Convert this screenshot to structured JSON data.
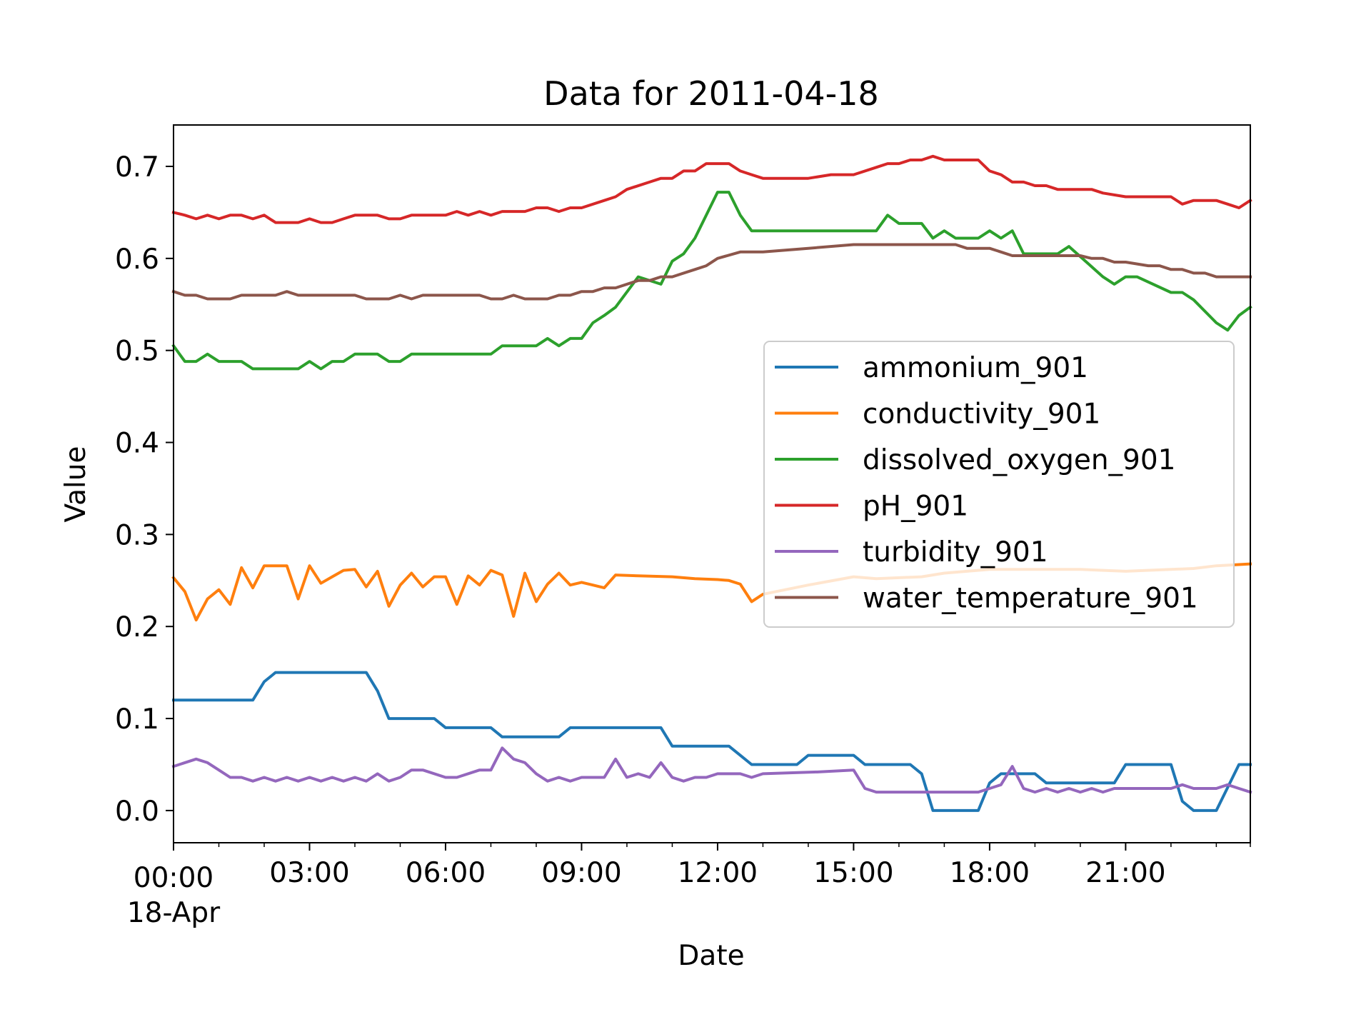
{
  "chart_data": {
    "type": "line",
    "title": "Data for 2011-04-18",
    "xlabel": "Date",
    "ylabel": "Value",
    "xlim": [
      0,
      23.75
    ],
    "ylim": [
      -0.035,
      0.745
    ],
    "x_unit": "hours since 2011-04-18 00:00",
    "x_ticks": [
      {
        "value": 0,
        "label": "00:00",
        "sublabel": "18-Apr"
      },
      {
        "value": 3,
        "label": "03:00"
      },
      {
        "value": 6,
        "label": "06:00"
      },
      {
        "value": 9,
        "label": "09:00"
      },
      {
        "value": 12,
        "label": "12:00"
      },
      {
        "value": 15,
        "label": "15:00"
      },
      {
        "value": 18,
        "label": "18:00"
      },
      {
        "value": 21,
        "label": "21:00"
      }
    ],
    "y_ticks": [
      {
        "value": 0.0,
        "label": "0.0"
      },
      {
        "value": 0.1,
        "label": "0.1"
      },
      {
        "value": 0.2,
        "label": "0.2"
      },
      {
        "value": 0.3,
        "label": "0.3"
      },
      {
        "value": 0.4,
        "label": "0.4"
      },
      {
        "value": 0.5,
        "label": "0.5"
      },
      {
        "value": 0.6,
        "label": "0.6"
      },
      {
        "value": 0.7,
        "label": "0.7"
      }
    ],
    "grid": false,
    "legend_position": "center-right",
    "series": [
      {
        "name": "ammonium_901",
        "color": "#1f77b4",
        "x": [
          0,
          1.75,
          2.0,
          2.25,
          4.25,
          4.5,
          4.75,
          5.75,
          6.0,
          7.0,
          7.25,
          8.5,
          8.75,
          10.75,
          11.0,
          12.25,
          12.5,
          12.75,
          13.75,
          14.0,
          15.0,
          15.25,
          16.25,
          16.5,
          16.75,
          17.75,
          18.0,
          18.25,
          18.5,
          19.0,
          19.25,
          20.75,
          21.0,
          22.0,
          22.25,
          22.5,
          23.0,
          23.5,
          23.75
        ],
        "values": [
          0.12,
          0.12,
          0.14,
          0.15,
          0.15,
          0.13,
          0.1,
          0.1,
          0.09,
          0.09,
          0.08,
          0.08,
          0.09,
          0.09,
          0.07,
          0.07,
          0.06,
          0.05,
          0.05,
          0.06,
          0.06,
          0.05,
          0.05,
          0.04,
          0.0,
          0.0,
          0.03,
          0.04,
          0.04,
          0.04,
          0.03,
          0.03,
          0.05,
          0.05,
          0.01,
          0.0,
          0.0,
          0.05,
          0.05
        ]
      },
      {
        "name": "conductivity_901",
        "color": "#ff7f0e",
        "x": [
          0,
          0.25,
          0.5,
          0.75,
          1.0,
          1.25,
          1.5,
          1.75,
          2.0,
          2.5,
          2.75,
          3.0,
          3.25,
          3.5,
          3.75,
          4.0,
          4.25,
          4.5,
          4.75,
          5.0,
          5.25,
          5.5,
          5.75,
          6.0,
          6.25,
          6.5,
          6.75,
          7.0,
          7.25,
          7.5,
          7.75,
          8.0,
          8.25,
          8.5,
          8.75,
          9.0,
          9.25,
          9.5,
          9.75,
          10.25,
          11.0,
          11.5,
          12.0,
          12.25,
          12.5,
          12.75,
          13.0,
          14.0,
          15.0,
          15.5,
          16.5,
          17.0,
          18.0,
          19.0,
          20.0,
          21.0,
          22.0,
          22.5,
          23.0,
          23.75
        ],
        "values": [
          0.253,
          0.238,
          0.207,
          0.23,
          0.24,
          0.224,
          0.264,
          0.242,
          0.266,
          0.266,
          0.23,
          0.266,
          0.247,
          0.254,
          0.261,
          0.262,
          0.243,
          0.26,
          0.222,
          0.245,
          0.258,
          0.243,
          0.254,
          0.254,
          0.224,
          0.255,
          0.245,
          0.261,
          0.256,
          0.211,
          0.258,
          0.227,
          0.246,
          0.258,
          0.245,
          0.248,
          0.245,
          0.242,
          0.256,
          0.255,
          0.254,
          0.252,
          0.251,
          0.25,
          0.246,
          0.227,
          0.235,
          0.245,
          0.254,
          0.252,
          0.254,
          0.258,
          0.262,
          0.262,
          0.262,
          0.26,
          0.262,
          0.263,
          0.266,
          0.268
        ]
      },
      {
        "name": "dissolved_oxygen_901",
        "color": "#2ca02c",
        "x": [
          0,
          0.25,
          0.5,
          0.75,
          1.0,
          1.5,
          1.75,
          2.0,
          2.75,
          3.0,
          3.25,
          3.5,
          3.75,
          4.0,
          4.5,
          4.75,
          5.0,
          5.25,
          7.0,
          7.25,
          8.0,
          8.25,
          8.5,
          8.75,
          9.0,
          9.25,
          9.5,
          9.75,
          10.25,
          10.75,
          11.0,
          11.25,
          11.5,
          12.0,
          12.25,
          12.5,
          12.75,
          14.5,
          15.5,
          15.75,
          16.0,
          16.5,
          16.75,
          17.0,
          17.25,
          17.75,
          18.0,
          18.25,
          18.5,
          18.75,
          19.5,
          19.75,
          20.5,
          20.75,
          21.0,
          21.25,
          22.0,
          22.25,
          22.5,
          23.0,
          23.25,
          23.5,
          23.75
        ],
        "values": [
          0.505,
          0.488,
          0.488,
          0.496,
          0.488,
          0.488,
          0.48,
          0.48,
          0.48,
          0.488,
          0.48,
          0.488,
          0.488,
          0.496,
          0.496,
          0.488,
          0.488,
          0.496,
          0.496,
          0.505,
          0.505,
          0.513,
          0.505,
          0.513,
          0.513,
          0.53,
          0.538,
          0.547,
          0.58,
          0.572,
          0.597,
          0.605,
          0.622,
          0.672,
          0.672,
          0.647,
          0.63,
          0.63,
          0.63,
          0.647,
          0.638,
          0.638,
          0.622,
          0.63,
          0.622,
          0.622,
          0.63,
          0.622,
          0.63,
          0.605,
          0.605,
          0.613,
          0.58,
          0.572,
          0.58,
          0.58,
          0.563,
          0.563,
          0.555,
          0.53,
          0.522,
          0.538,
          0.547
        ]
      },
      {
        "name": "pH_901",
        "color": "#d62728",
        "x": [
          0,
          0.25,
          0.5,
          0.75,
          1.0,
          1.25,
          1.5,
          1.75,
          2.0,
          2.25,
          2.5,
          2.75,
          3.0,
          3.25,
          3.5,
          3.75,
          4.0,
          4.5,
          4.75,
          5.0,
          5.25,
          5.5,
          6.0,
          6.25,
          6.5,
          6.75,
          7.0,
          7.25,
          7.5,
          7.75,
          8.0,
          8.25,
          8.5,
          8.75,
          9.0,
          9.5,
          9.75,
          10.0,
          10.5,
          10.75,
          11.0,
          11.25,
          11.5,
          11.75,
          12.0,
          12.25,
          12.5,
          12.75,
          13.0,
          13.5,
          14.0,
          14.5,
          15.0,
          15.5,
          15.75,
          16.0,
          16.25,
          16.5,
          16.75,
          17.0,
          17.75,
          18.0,
          18.25,
          18.5,
          18.75,
          19.0,
          19.25,
          19.5,
          20.0,
          20.25,
          20.5,
          21.0,
          21.5,
          22.0,
          22.25,
          22.5,
          23.0,
          23.25,
          23.5,
          23.75
        ],
        "values": [
          0.65,
          0.647,
          0.643,
          0.647,
          0.643,
          0.647,
          0.647,
          0.643,
          0.647,
          0.639,
          0.639,
          0.639,
          0.643,
          0.639,
          0.639,
          0.643,
          0.647,
          0.647,
          0.643,
          0.643,
          0.647,
          0.647,
          0.647,
          0.651,
          0.647,
          0.651,
          0.647,
          0.651,
          0.651,
          0.651,
          0.655,
          0.655,
          0.651,
          0.655,
          0.655,
          0.663,
          0.667,
          0.675,
          0.683,
          0.687,
          0.687,
          0.695,
          0.695,
          0.703,
          0.703,
          0.703,
          0.695,
          0.691,
          0.687,
          0.687,
          0.687,
          0.691,
          0.691,
          0.699,
          0.703,
          0.703,
          0.707,
          0.707,
          0.711,
          0.707,
          0.707,
          0.695,
          0.691,
          0.683,
          0.683,
          0.679,
          0.679,
          0.675,
          0.675,
          0.675,
          0.671,
          0.667,
          0.667,
          0.667,
          0.659,
          0.663,
          0.663,
          0.659,
          0.655,
          0.663
        ]
      },
      {
        "name": "turbidity_901",
        "color": "#9467bd",
        "x": [
          0,
          0.5,
          0.75,
          1.0,
          1.25,
          1.5,
          1.75,
          2.0,
          2.25,
          2.5,
          2.75,
          3.0,
          3.25,
          3.5,
          3.75,
          4.0,
          4.25,
          4.5,
          4.75,
          5.0,
          5.25,
          5.5,
          6.0,
          6.25,
          6.75,
          7.0,
          7.25,
          7.5,
          7.75,
          8.0,
          8.25,
          8.5,
          8.75,
          9.0,
          9.5,
          9.75,
          10.0,
          10.25,
          10.5,
          10.75,
          11.0,
          11.25,
          11.5,
          11.75,
          12.0,
          12.5,
          12.75,
          13.0,
          14.25,
          15.0,
          15.25,
          15.5,
          17.75,
          18.0,
          18.25,
          18.5,
          18.75,
          19.0,
          19.25,
          19.5,
          19.75,
          20.0,
          20.25,
          20.5,
          20.75,
          21.0,
          21.5,
          22.0,
          22.25,
          22.5,
          23.0,
          23.25,
          23.5,
          23.75
        ],
        "values": [
          0.048,
          0.056,
          0.052,
          0.044,
          0.036,
          0.036,
          0.032,
          0.036,
          0.032,
          0.036,
          0.032,
          0.036,
          0.032,
          0.036,
          0.032,
          0.036,
          0.032,
          0.04,
          0.032,
          0.036,
          0.044,
          0.044,
          0.036,
          0.036,
          0.044,
          0.044,
          0.068,
          0.056,
          0.052,
          0.04,
          0.032,
          0.036,
          0.032,
          0.036,
          0.036,
          0.056,
          0.036,
          0.04,
          0.036,
          0.052,
          0.036,
          0.032,
          0.036,
          0.036,
          0.04,
          0.04,
          0.036,
          0.04,
          0.042,
          0.044,
          0.024,
          0.02,
          0.02,
          0.024,
          0.028,
          0.048,
          0.024,
          0.02,
          0.024,
          0.02,
          0.024,
          0.02,
          0.024,
          0.02,
          0.024,
          0.024,
          0.024,
          0.024,
          0.028,
          0.024,
          0.024,
          0.028,
          0.024,
          0.02
        ]
      },
      {
        "name": "water_temperature_901",
        "color": "#8c564b",
        "x": [
          0,
          0.25,
          0.5,
          0.75,
          1.25,
          1.5,
          2.25,
          2.5,
          2.75,
          4.0,
          4.25,
          4.75,
          5.0,
          5.25,
          5.5,
          6.75,
          7.0,
          7.25,
          7.5,
          7.75,
          8.25,
          8.5,
          8.75,
          9.0,
          9.25,
          9.5,
          9.75,
          10.25,
          10.5,
          10.75,
          11.0,
          11.5,
          11.75,
          12.0,
          12.5,
          13.0,
          14.0,
          15.0,
          17.25,
          17.5,
          18.0,
          18.25,
          18.5,
          20.0,
          20.25,
          20.5,
          20.75,
          21.0,
          21.5,
          21.75,
          22.0,
          22.25,
          22.5,
          22.75,
          23.0,
          23.75
        ],
        "values": [
          0.564,
          0.56,
          0.56,
          0.556,
          0.556,
          0.56,
          0.56,
          0.564,
          0.56,
          0.56,
          0.556,
          0.556,
          0.56,
          0.556,
          0.56,
          0.56,
          0.556,
          0.556,
          0.56,
          0.556,
          0.556,
          0.56,
          0.56,
          0.564,
          0.564,
          0.568,
          0.568,
          0.576,
          0.576,
          0.58,
          0.58,
          0.588,
          0.592,
          0.6,
          0.607,
          0.607,
          0.611,
          0.615,
          0.615,
          0.611,
          0.611,
          0.607,
          0.603,
          0.603,
          0.6,
          0.6,
          0.596,
          0.596,
          0.592,
          0.592,
          0.588,
          0.588,
          0.584,
          0.584,
          0.58,
          0.58
        ]
      }
    ]
  }
}
